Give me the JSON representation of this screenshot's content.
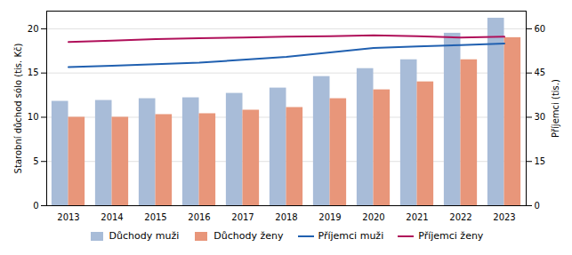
{
  "chart_data": {
    "type": "bar",
    "categories": [
      "2013",
      "2014",
      "2015",
      "2016",
      "2017",
      "2018",
      "2019",
      "2020",
      "2021",
      "2022",
      "2023"
    ],
    "series": [
      {
        "name": "Důchody muži",
        "type": "bar",
        "color": "#a8bcd8",
        "values": [
          11.8,
          11.9,
          12.1,
          12.2,
          12.7,
          13.3,
          14.6,
          15.5,
          16.5,
          19.5,
          21.2
        ]
      },
      {
        "name": "Důchody ženy",
        "type": "bar",
        "color": "#e8967a",
        "values": [
          10.0,
          10.0,
          10.3,
          10.4,
          10.8,
          11.1,
          12.1,
          13.1,
          14.0,
          16.5,
          19.0
        ]
      },
      {
        "name": "Příjemci muži",
        "type": "line",
        "axis": "y2",
        "color": "#2060b0",
        "values": [
          47.0,
          47.5,
          48.0,
          48.5,
          49.5,
          50.5,
          52.0,
          53.5,
          54.0,
          54.5,
          55.0
        ]
      },
      {
        "name": "Příjemci ženy",
        "type": "line",
        "axis": "y2",
        "color": "#b0105a",
        "values": [
          55.5,
          56.0,
          56.5,
          56.8,
          57.0,
          57.3,
          57.5,
          57.8,
          57.5,
          57.0,
          57.3
        ]
      }
    ],
    "ylabel": "Starobní důchod sólo (tis. Kč)",
    "y2label": "Příjemci (tis.)",
    "ylim": [
      0,
      22
    ],
    "yticks": [
      0,
      5,
      10,
      15,
      20
    ],
    "y2lim": [
      0,
      66
    ],
    "y2ticks": [
      0,
      15,
      30,
      45,
      60
    ],
    "grid": true,
    "legend": "bottom"
  }
}
